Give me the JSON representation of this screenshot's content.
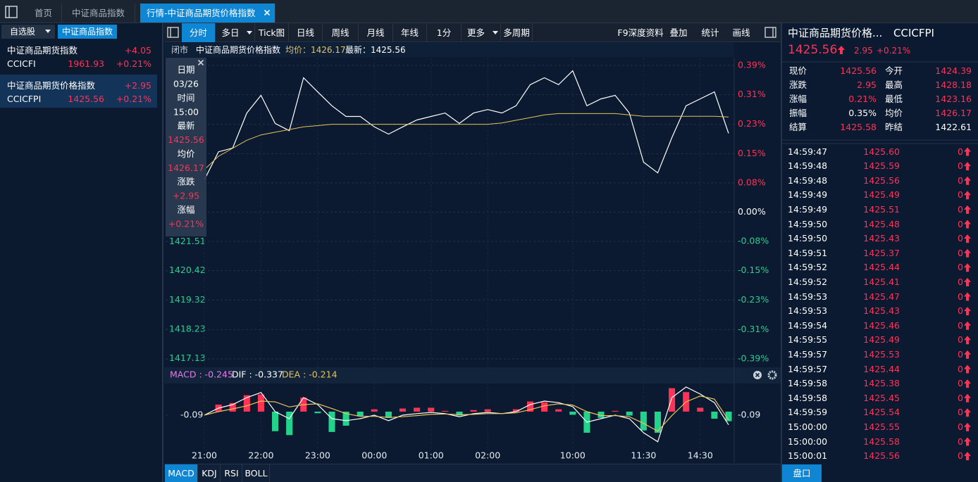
{
  "tabs": [
    "首页",
    "中证商品指数",
    "行情-中证商品期货价格指数"
  ],
  "sidebar": {
    "tabs": [
      "自选股",
      "中证商品指数"
    ],
    "items": [
      {
        "name": "中证商品期货指数",
        "change": "+4.05",
        "code": "CCICFI",
        "price": "1961.93",
        "pct": "+0.21%"
      },
      {
        "name": "中证商品期货价格指数",
        "change": "+2.95",
        "code": "CCICFPI",
        "price": "1425.56",
        "pct": "+0.21%"
      }
    ]
  },
  "toolbar": {
    "left": [
      "分时",
      "多日",
      "Tick图",
      "日线",
      "周线",
      "月线",
      "年线",
      "1分",
      "更多",
      "多周期"
    ],
    "right": [
      "F9深度资料",
      "叠加",
      "统计",
      "画线"
    ]
  },
  "info_bar": [
    "闭市",
    "中证商品期货价格指数",
    "均价：1426.17",
    "最新：1425.56"
  ],
  "tooltip": [
    {
      "label": "日期",
      "value": "03/26"
    },
    {
      "label": "时间",
      "value": "15:00"
    },
    {
      "label": "最新",
      "value": "1425.56"
    },
    {
      "label": "均价",
      "value": "1426.17"
    },
    {
      "label": "涨跌",
      "value": "+2.95"
    },
    {
      "label": "涨幅",
      "value": "+0.21%"
    }
  ],
  "chart_data": [
    {
      "type": "line",
      "x": [
        "21:00",
        null,
        null,
        null,
        "22:00",
        null,
        null,
        null,
        "23:00",
        null,
        null,
        null,
        "00:00",
        null,
        null,
        null,
        "01:00",
        null,
        null,
        null,
        "02:00",
        null,
        null,
        null,
        null,
        null,
        "10:00",
        null,
        null,
        null,
        null,
        "11:30",
        null,
        null,
        null,
        "14:30",
        null,
        null
      ],
      "series": [
        {
          "color": "#ffffff",
          "values": [
            1423.82,
            1424.87,
            1425.01,
            1426.32,
            1426.98,
            1425.93,
            1425.66,
            1427.64,
            1427.11,
            1426.59,
            1426.19,
            1426.19,
            1425.8,
            1425.53,
            1425.8,
            1426.06,
            1426.19,
            1426.32,
            1425.93,
            1426.32,
            1426.45,
            1426.32,
            1426.59,
            1427.38,
            1427.64,
            1427.38,
            1427.9,
            1426.59,
            1426.85,
            1426.98,
            1426.32,
            1424.48,
            1424.08,
            1425.4,
            1426.59,
            1426.85,
            1427.11,
            1425.56
          ]
        },
        {
          "color": "#e8c25a",
          "values": [
            1424.2,
            1424.7,
            1425.0,
            1425.3,
            1425.5,
            1425.6,
            1425.7,
            1425.8,
            1425.85,
            1425.9,
            1425.9,
            1425.9,
            1425.9,
            1425.9,
            1425.9,
            1425.9,
            1425.9,
            1425.9,
            1425.9,
            1425.9,
            1425.9,
            1425.95,
            1426.05,
            1426.15,
            1426.25,
            1426.3,
            1426.3,
            1426.3,
            1426.3,
            1426.3,
            1426.25,
            1426.2,
            1426.2,
            1426.2,
            1426.2,
            1426.2,
            1426.2,
            1426.17
          ]
        }
      ],
      "ylim": [
        1417.12,
        1428.1
      ],
      "yticks": [
        1421.51,
        1420.42,
        1419.32,
        1418.23,
        1417.13
      ],
      "y2lim": [
        -0.386,
        0.386
      ],
      "y2ticks": [
        {
          "value": 0.386,
          "label": "0.39%"
        },
        {
          "value": 0.309,
          "label": "0.31%"
        },
        {
          "value": 0.231,
          "label": "0.23%"
        },
        {
          "value": 0.154,
          "label": "0.15%"
        },
        {
          "value": 0.077,
          "label": "0.08%"
        },
        {
          "value": 0,
          "label": "0.00%"
        },
        {
          "value": -0.077,
          "label": "-0.08%"
        },
        {
          "value": -0.154,
          "label": "-0.15%"
        },
        {
          "value": -0.231,
          "label": "-0.23%"
        },
        {
          "value": -0.309,
          "label": "-0.31%"
        },
        {
          "value": -0.386,
          "label": "-0.39%"
        }
      ],
      "grid": true
    },
    {
      "type": "macd",
      "legend": [
        {
          "text": "MACD : -0.245",
          "color": "#e879e8"
        },
        {
          "text": "DIF : -0.337",
          "color": "#ffffff"
        },
        {
          "text": "DEA : -0.214",
          "color": "#e8c25a"
        }
      ],
      "histogram": {
        "up_color": "#ff3355",
        "down_color": "#22d38b",
        "values": [
          0,
          0.18,
          0.22,
          0.42,
          0.44,
          -0.5,
          -0.6,
          0.36,
          -0.04,
          -0.52,
          -0.36,
          -0.12,
          0.06,
          -0.16,
          0.08,
          0.1,
          0.1,
          0.02,
          -0.1,
          0.04,
          0.06,
          0,
          0.06,
          0.26,
          0.24,
          0.06,
          -0.08,
          -0.54,
          -0.16,
          0.02,
          -0.1,
          -0.48,
          -0.54,
          0.6,
          0.5,
          0.1,
          -0.18,
          -0.245
        ]
      },
      "series": [
        {
          "color": "#ffffff",
          "values": [
            -0.09,
            0.09,
            0.18,
            0.36,
            0.49,
            0,
            -0.18,
            0.36,
            0.18,
            -0.18,
            -0.23,
            -0.18,
            -0.09,
            -0.23,
            -0.09,
            -0.05,
            -0.02,
            -0.05,
            -0.13,
            -0.05,
            -0.02,
            -0.05,
            0,
            0.18,
            0.27,
            0.23,
            0.13,
            -0.27,
            -0.18,
            -0.09,
            -0.18,
            -0.54,
            -0.77,
            0.36,
            0.63,
            0.45,
            0.23,
            -0.337
          ]
        },
        {
          "color": "#e8c25a",
          "values": [
            -0.09,
            0,
            0.07,
            0.15,
            0.27,
            0.25,
            0.12,
            0.18,
            0.2,
            0.08,
            -0.05,
            -0.12,
            -0.12,
            -0.15,
            -0.13,
            -0.1,
            -0.07,
            -0.06,
            -0.08,
            -0.07,
            -0.05,
            -0.05,
            -0.03,
            0.05,
            0.15,
            0.2,
            0.17,
            0,
            -0.1,
            -0.1,
            -0.13,
            -0.3,
            -0.5,
            -0.1,
            0.25,
            0.4,
            0.32,
            -0.214
          ]
        }
      ],
      "ylim": [
        -0.99,
        0.72
      ],
      "yticks": [
        -0.09
      ]
    }
  ],
  "indicator_tabs": [
    "MACD",
    "KDJ",
    "RSI",
    "BOLL"
  ],
  "quote": {
    "title": "中证商品期货价格...",
    "code": "CCICFPI",
    "price": "1425.56",
    "change": "2.95",
    "pct": "+0.21%",
    "stats": [
      [
        "现价",
        "1425.56",
        "今开",
        "1424.39"
      ],
      [
        "涨跌",
        "2.95",
        "最高",
        "1428.18"
      ],
      [
        "涨幅",
        "0.21%",
        "最低",
        "1423.16"
      ],
      [
        "振幅",
        "0.35%",
        "均价",
        "1426.17"
      ],
      [
        "结算",
        "1425.58",
        "昨结",
        "1422.61"
      ]
    ]
  },
  "trades": [
    [
      "14:59:47",
      "1425.60",
      "0"
    ],
    [
      "14:59:48",
      "1425.59",
      "0"
    ],
    [
      "14:59:48",
      "1425.56",
      "0"
    ],
    [
      "14:59:49",
      "1425.49",
      "0"
    ],
    [
      "14:59:49",
      "1425.51",
      "0"
    ],
    [
      "14:59:50",
      "1425.48",
      "0"
    ],
    [
      "14:59:50",
      "1425.43",
      "0"
    ],
    [
      "14:59:51",
      "1425.37",
      "0"
    ],
    [
      "14:59:52",
      "1425.44",
      "0"
    ],
    [
      "14:59:52",
      "1425.41",
      "0"
    ],
    [
      "14:59:53",
      "1425.47",
      "0"
    ],
    [
      "14:59:53",
      "1425.43",
      "0"
    ],
    [
      "14:59:54",
      "1425.46",
      "0"
    ],
    [
      "14:59:55",
      "1425.49",
      "0"
    ],
    [
      "14:59:57",
      "1425.53",
      "0"
    ],
    [
      "14:59:57",
      "1425.44",
      "0"
    ],
    [
      "14:59:58",
      "1425.38",
      "0"
    ],
    [
      "14:59:58",
      "1425.45",
      "0"
    ],
    [
      "14:59:59",
      "1425.54",
      "0"
    ],
    [
      "15:00:00",
      "1425.55",
      "0"
    ],
    [
      "15:00:00",
      "1425.58",
      "0"
    ],
    [
      "15:00:01",
      "1425.56",
      "0"
    ]
  ],
  "panel_button": "盘口"
}
